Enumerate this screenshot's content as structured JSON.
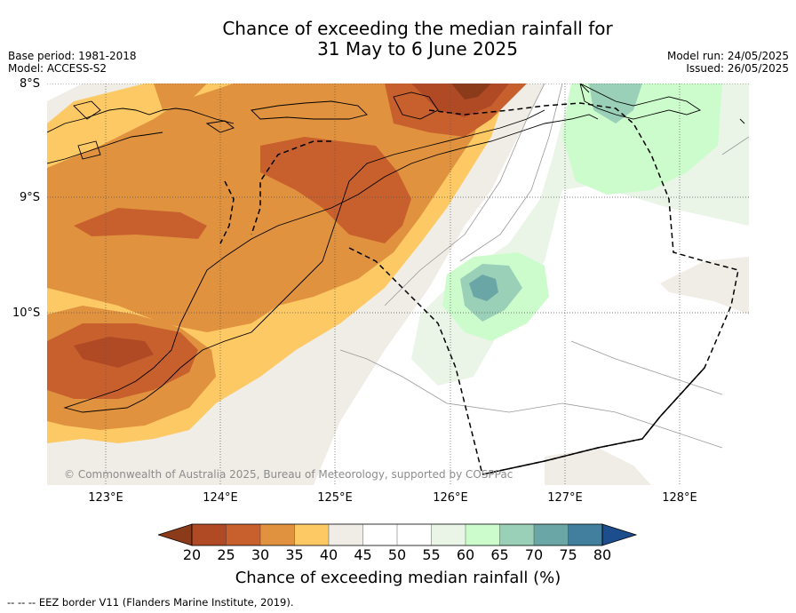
{
  "title_line1": "Chance of exceeding the median rainfall for",
  "title_line2": "31 May to 6 June 2025",
  "base_period": "Base period: 1981-2018",
  "model": "Model: ACCESS-S2",
  "model_run": "Model run: 24/05/2025",
  "issued": "Issued: 26/05/2025",
  "lat_labels": [
    "8°S",
    "9°S",
    "10°S"
  ],
  "lon_labels": [
    "123°E",
    "124°E",
    "125°E",
    "126°E",
    "127°E",
    "128°E"
  ],
  "copyright": "© Commonwealth of Australia 2025, Bureau of Meteorology, supported by COSPPac",
  "colorbar": {
    "title": "Chance of exceeding median rainfall (%)",
    "ticks": [
      "20",
      "25",
      "30",
      "35",
      "40",
      "45",
      "50",
      "55",
      "60",
      "65",
      "70",
      "75",
      "80"
    ],
    "colors": [
      "#8b3a1a",
      "#b04a25",
      "#c8602e",
      "#e0923f",
      "#fdc964",
      "#f0ece6",
      "#ffffff",
      "#ffffff",
      "#eaf5e8",
      "#ccfccc",
      "#9bd0b8",
      "#6aa6a6",
      "#427f9e",
      "#1c4d8c"
    ]
  },
  "footer": "--  --  -- EEZ border V11 (Flanders Marine Institute, 2019)."
}
